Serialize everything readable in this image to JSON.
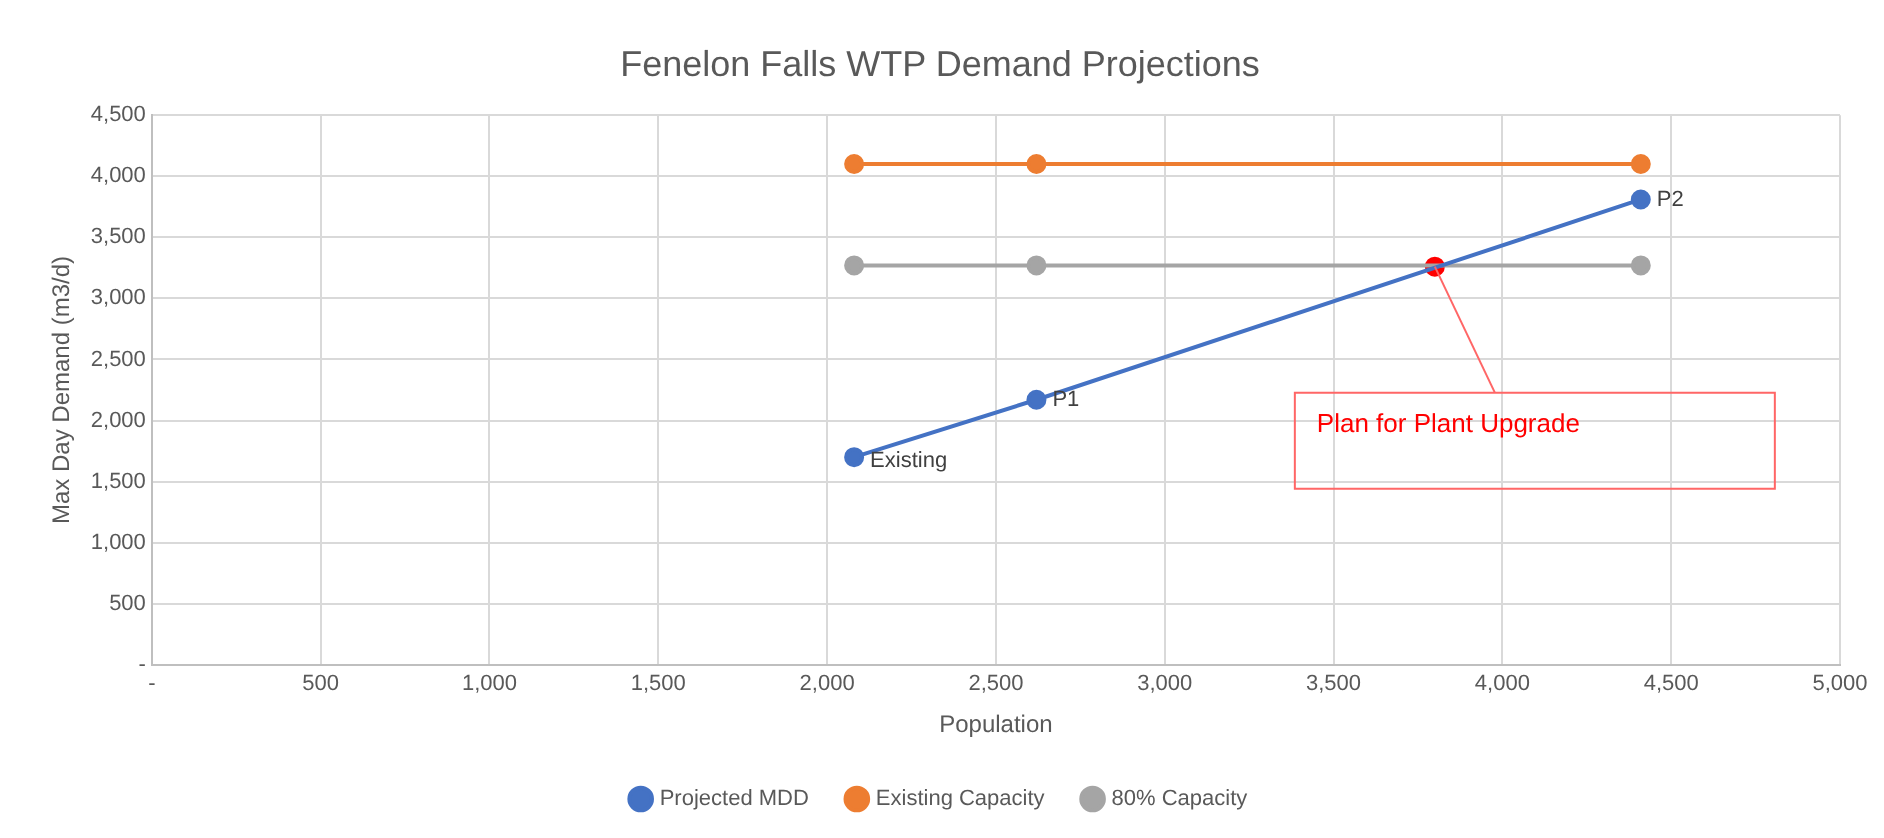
{
  "chart_data": {
    "type": "line",
    "title": "Fenelon Falls WTP Demand Projections",
    "xlabel": "Population",
    "ylabel": "Max Day Demand (m3/d)",
    "xlim": [
      0,
      5000
    ],
    "xticks": [
      {
        "value": 0,
        "label": "-"
      },
      500,
      {
        "value": 1000,
        "label": "1,000"
      },
      {
        "value": 1500,
        "label": "1,500"
      },
      {
        "value": 2000,
        "label": "2,000"
      },
      {
        "value": 2500,
        "label": "2,500"
      },
      {
        "value": 3000,
        "label": "3,000"
      },
      {
        "value": 3500,
        "label": "3,500"
      },
      {
        "value": 4000,
        "label": "4,000"
      },
      {
        "value": 4500,
        "label": "4,500"
      },
      {
        "value": 5000,
        "label": "5,000"
      }
    ],
    "ylim": [
      0,
      4500
    ],
    "yticks": [
      {
        "value": 0,
        "label": "-"
      },
      500,
      {
        "value": 1000,
        "label": "1,000"
      },
      {
        "value": 1500,
        "label": "1,500"
      },
      {
        "value": 2000,
        "label": "2,000"
      },
      {
        "value": 2500,
        "label": "2,500"
      },
      {
        "value": 3000,
        "label": "3,000"
      },
      {
        "value": 3500,
        "label": "3,500"
      },
      {
        "value": 4000,
        "label": "4,000"
      },
      {
        "value": 4500,
        "label": "4,500"
      }
    ],
    "series": [
      {
        "name": "Projected MDD",
        "color": "#4472c4",
        "x": [
          2080,
          2620,
          4410
        ],
        "values": [
          1700,
          2170,
          3810
        ],
        "value_labels": [
          "Existing",
          "P1",
          "P2"
        ]
      },
      {
        "name": "Existing Capacity",
        "color": "#ed7d31",
        "x": [
          2080,
          2620,
          4410
        ],
        "values": [
          4100,
          4100,
          4100
        ]
      },
      {
        "name": "80% Capacity",
        "color": "#a5a5a5",
        "x": [
          2080,
          2620,
          4410
        ],
        "values": [
          3270,
          3270,
          3270
        ]
      },
      {
        "type": "scatter",
        "color": "#ff0000",
        "x": [
          3800
        ],
        "values": [
          3260
        ]
      }
    ],
    "annotations": [
      {
        "text": "Plan for Plant Upgrade",
        "x": 3800,
        "y": 3260
      }
    ],
    "grid": true,
    "legend": "bottom",
    "marker": "circle",
    "line_style": "solid"
  }
}
